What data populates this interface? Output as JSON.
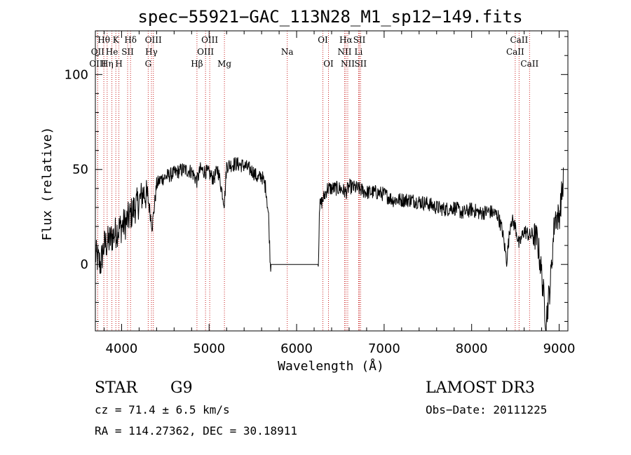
{
  "chart_data": {
    "type": "line",
    "title": "spec−55921−GAC_113N28_M1_sp12−149.fits",
    "xlabel": "Wavelength (Å)",
    "ylabel": "Flux (relative)",
    "xlim": [
      3700,
      9100
    ],
    "ylim": [
      -35,
      123
    ],
    "x_ticks": [
      4000,
      5000,
      6000,
      7000,
      8000,
      9000
    ],
    "y_ticks": [
      0,
      50,
      100
    ],
    "grid": false,
    "series": [
      {
        "x": [
          3700,
          3760,
          3800,
          3850,
          3900,
          3950,
          4000,
          4050,
          4100,
          4150,
          4200,
          4250,
          4300,
          4350,
          4400,
          4450,
          4500,
          4600,
          4700,
          4800,
          4860,
          4900,
          5000,
          5050,
          5100,
          5175,
          5200,
          5300,
          5400,
          5500,
          5560,
          5600,
          5650,
          5680,
          5700,
          6250,
          6260,
          6300,
          6350,
          6400,
          6500,
          6563,
          6600,
          6700,
          6800,
          6900,
          7000,
          7100,
          7200,
          7300,
          7400,
          7500,
          7600,
          7700,
          7800,
          7900,
          8000,
          8100,
          8200,
          8300,
          8350,
          8400,
          8450,
          8500,
          8542,
          8600,
          8662,
          8700,
          8750,
          8800,
          8850,
          8900,
          8950,
          9000,
          9050
        ],
        "y": [
          5,
          0,
          10,
          12,
          15,
          18,
          20,
          22,
          26,
          30,
          33,
          38,
          35,
          20,
          42,
          45,
          46,
          48,
          50,
          49,
          44,
          50,
          48,
          45,
          50,
          32,
          52,
          53,
          52,
          49,
          45,
          47,
          40,
          25,
          0,
          0,
          30,
          34,
          40,
          40,
          40,
          38,
          41,
          40,
          38,
          38,
          37,
          34,
          34,
          34,
          33,
          32,
          30,
          29,
          30,
          27,
          29,
          27,
          28,
          26,
          18,
          2,
          24,
          20,
          10,
          18,
          15,
          16,
          13,
          -5,
          -30,
          -10,
          25,
          25,
          45
        ]
      }
    ],
    "lines": [
      {
        "label": "Hθ",
        "x": 3797,
        "row": 1
      },
      {
        "label": "OII",
        "x": 3727,
        "row": 2
      },
      {
        "label": "OIII",
        "x": 3727,
        "row": 3
      },
      {
        "label": "Hη",
        "x": 3835,
        "row": 3
      },
      {
        "label": "He",
        "x": 3889,
        "row": 2
      },
      {
        "label": "K",
        "x": 3934,
        "row": 1
      },
      {
        "label": "SII",
        "x": 4069,
        "row": 2
      },
      {
        "label": "H",
        "x": 3969,
        "row": 3
      },
      {
        "label": "Hδ",
        "x": 4102,
        "row": 1
      },
      {
        "label": "OIII",
        "x": 4363,
        "row": 1
      },
      {
        "label": "Hγ",
        "x": 4341,
        "row": 2
      },
      {
        "label": "G",
        "x": 4304,
        "row": 3
      },
      {
        "label": "Hβ",
        "x": 4861,
        "row": 3
      },
      {
        "label": "OIII",
        "x": 5007,
        "row": 1
      },
      {
        "label": "OIII",
        "x": 4959,
        "row": 2
      },
      {
        "label": "Mg",
        "x": 5175,
        "row": 3
      },
      {
        "label": "Na",
        "x": 5893,
        "row": 2
      },
      {
        "label": "OI",
        "x": 6300,
        "row": 1
      },
      {
        "label": "OI",
        "x": 6364,
        "row": 3
      },
      {
        "label": "Hα",
        "x": 6563,
        "row": 1
      },
      {
        "label": "SII",
        "x": 6717,
        "row": 1
      },
      {
        "label": "NII",
        "x": 6548,
        "row": 2
      },
      {
        "label": "Li",
        "x": 6708,
        "row": 2
      },
      {
        "label": "NII",
        "x": 6584,
        "row": 3
      },
      {
        "label": "SII",
        "x": 6731,
        "row": 3
      },
      {
        "label": "CaII",
        "x": 8542,
        "row": 1
      },
      {
        "label": "CaII",
        "x": 8498,
        "row": 2
      },
      {
        "label": "CaII",
        "x": 8662,
        "row": 3
      }
    ]
  },
  "info": {
    "class_label": "STAR",
    "subclass": "G9",
    "survey": "LAMOST DR3",
    "cz": "cz = 71.4 ± 6.5 km/s",
    "obs_date": "Obs−Date: 20111225",
    "radec": "RA = 114.27362, DEC =  30.18911"
  }
}
